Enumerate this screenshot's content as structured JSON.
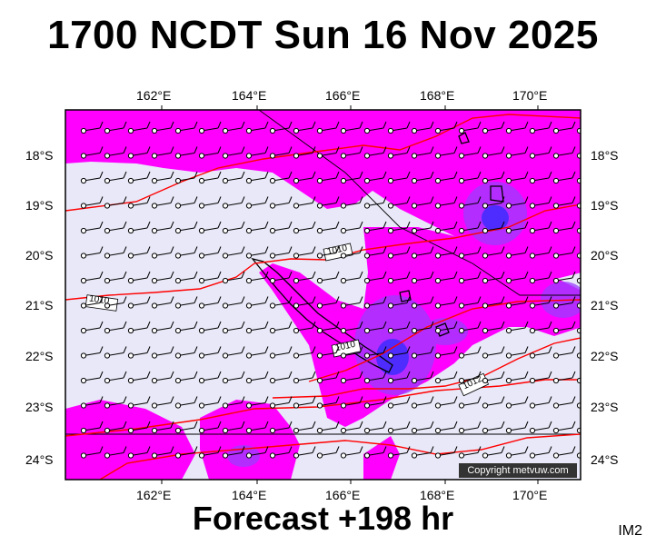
{
  "header": {
    "title": "1700 NCDT Sun 16 Nov 2025"
  },
  "footer": {
    "forecast": "Forecast +198 hr"
  },
  "image_id_label": "IM2",
  "copyright": "Copyright metvuw.com",
  "axes": {
    "longitude_labels": [
      "162°E",
      "164°E",
      "166°E",
      "168°E",
      "170°E"
    ],
    "latitude_labels": [
      "18°S",
      "19°S",
      "20°S",
      "21°S",
      "22°S",
      "23°S",
      "24°S"
    ]
  },
  "isobar_labels": [
    "1010",
    "1010",
    "1010",
    "1012"
  ],
  "colors": {
    "background": "#e8e8f8",
    "rain_light": "#ff00ff",
    "rain_medium": "#9a3cff",
    "rain_heavy": "#3c2cff",
    "isobar": "#ff0000",
    "coast": "#000000"
  }
}
